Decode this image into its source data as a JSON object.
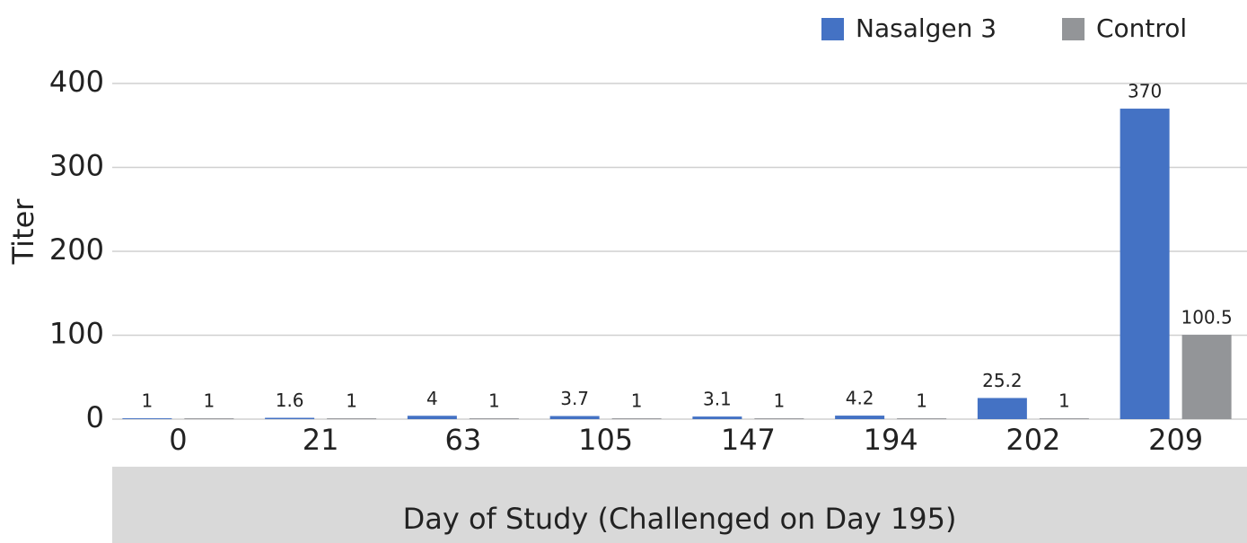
{
  "chart_data": {
    "type": "bar",
    "x_label": "Day of Study (Challenged on Day 195)",
    "y_label": "Titer",
    "categories": [
      "0",
      "21",
      "63",
      "105",
      "147",
      "194",
      "202",
      "209"
    ],
    "series": [
      {
        "name": "Nasalgen 3",
        "color": "#4472c4",
        "values": [
          1,
          1.6,
          4,
          3.7,
          3.1,
          4.2,
          25.2,
          370
        ]
      },
      {
        "name": "Control",
        "color": "#939598",
        "values": [
          1,
          1,
          1,
          1,
          1,
          1,
          1,
          100.5
        ]
      }
    ],
    "ylim": [
      0,
      400
    ],
    "yticks": [
      0,
      100,
      200,
      300,
      400
    ],
    "grid": true,
    "legend": "top-right"
  }
}
